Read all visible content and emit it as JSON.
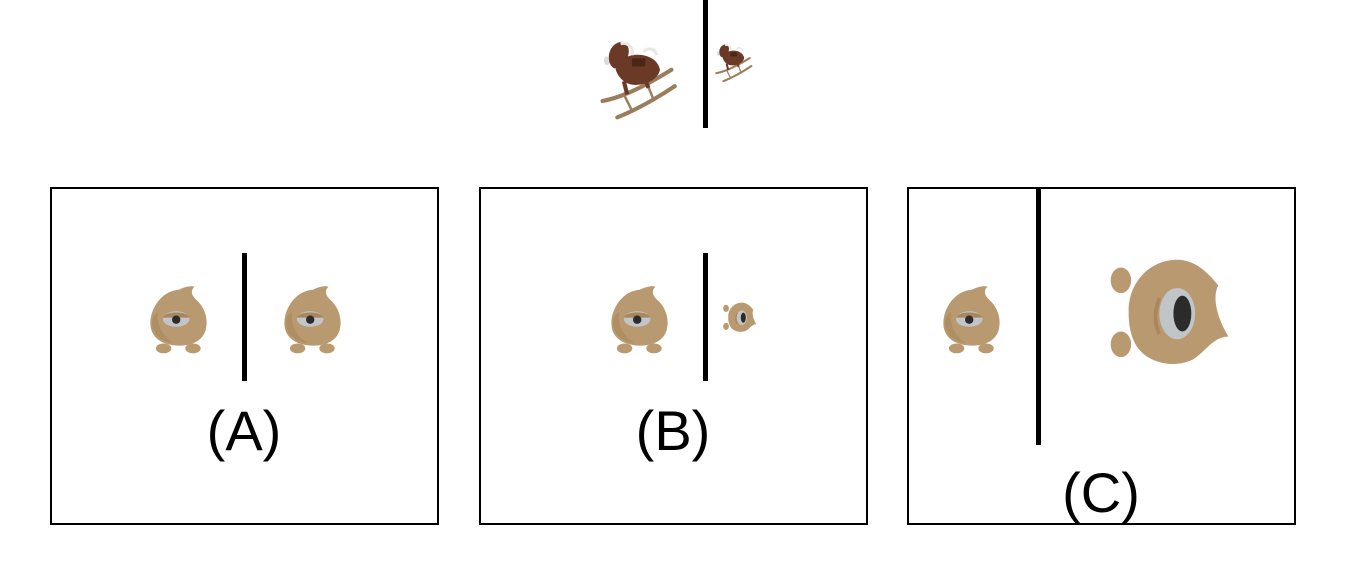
{
  "reference": {
    "left_object_icon": "rocking-horse-icon",
    "right_object_icon": "rocking-horse-icon"
  },
  "options": [
    {
      "label": "(A)",
      "left_icon": "round-creature-icon",
      "right_icon": "round-creature-icon"
    },
    {
      "label": "(B)",
      "left_icon": "round-creature-icon",
      "right_icon": "round-creature-icon"
    },
    {
      "label": "(C)",
      "left_icon": "round-creature-icon",
      "right_icon": "round-creature-icon"
    }
  ],
  "colors": {
    "creature_body": "#b99a70",
    "creature_shade": "#a8875c",
    "eye_white": "#c2c5c8",
    "pupil": "#2b2b2b",
    "horse_brown": "#6b3a26",
    "rocker_wood": "#9a7d5c",
    "line": "#000000"
  }
}
